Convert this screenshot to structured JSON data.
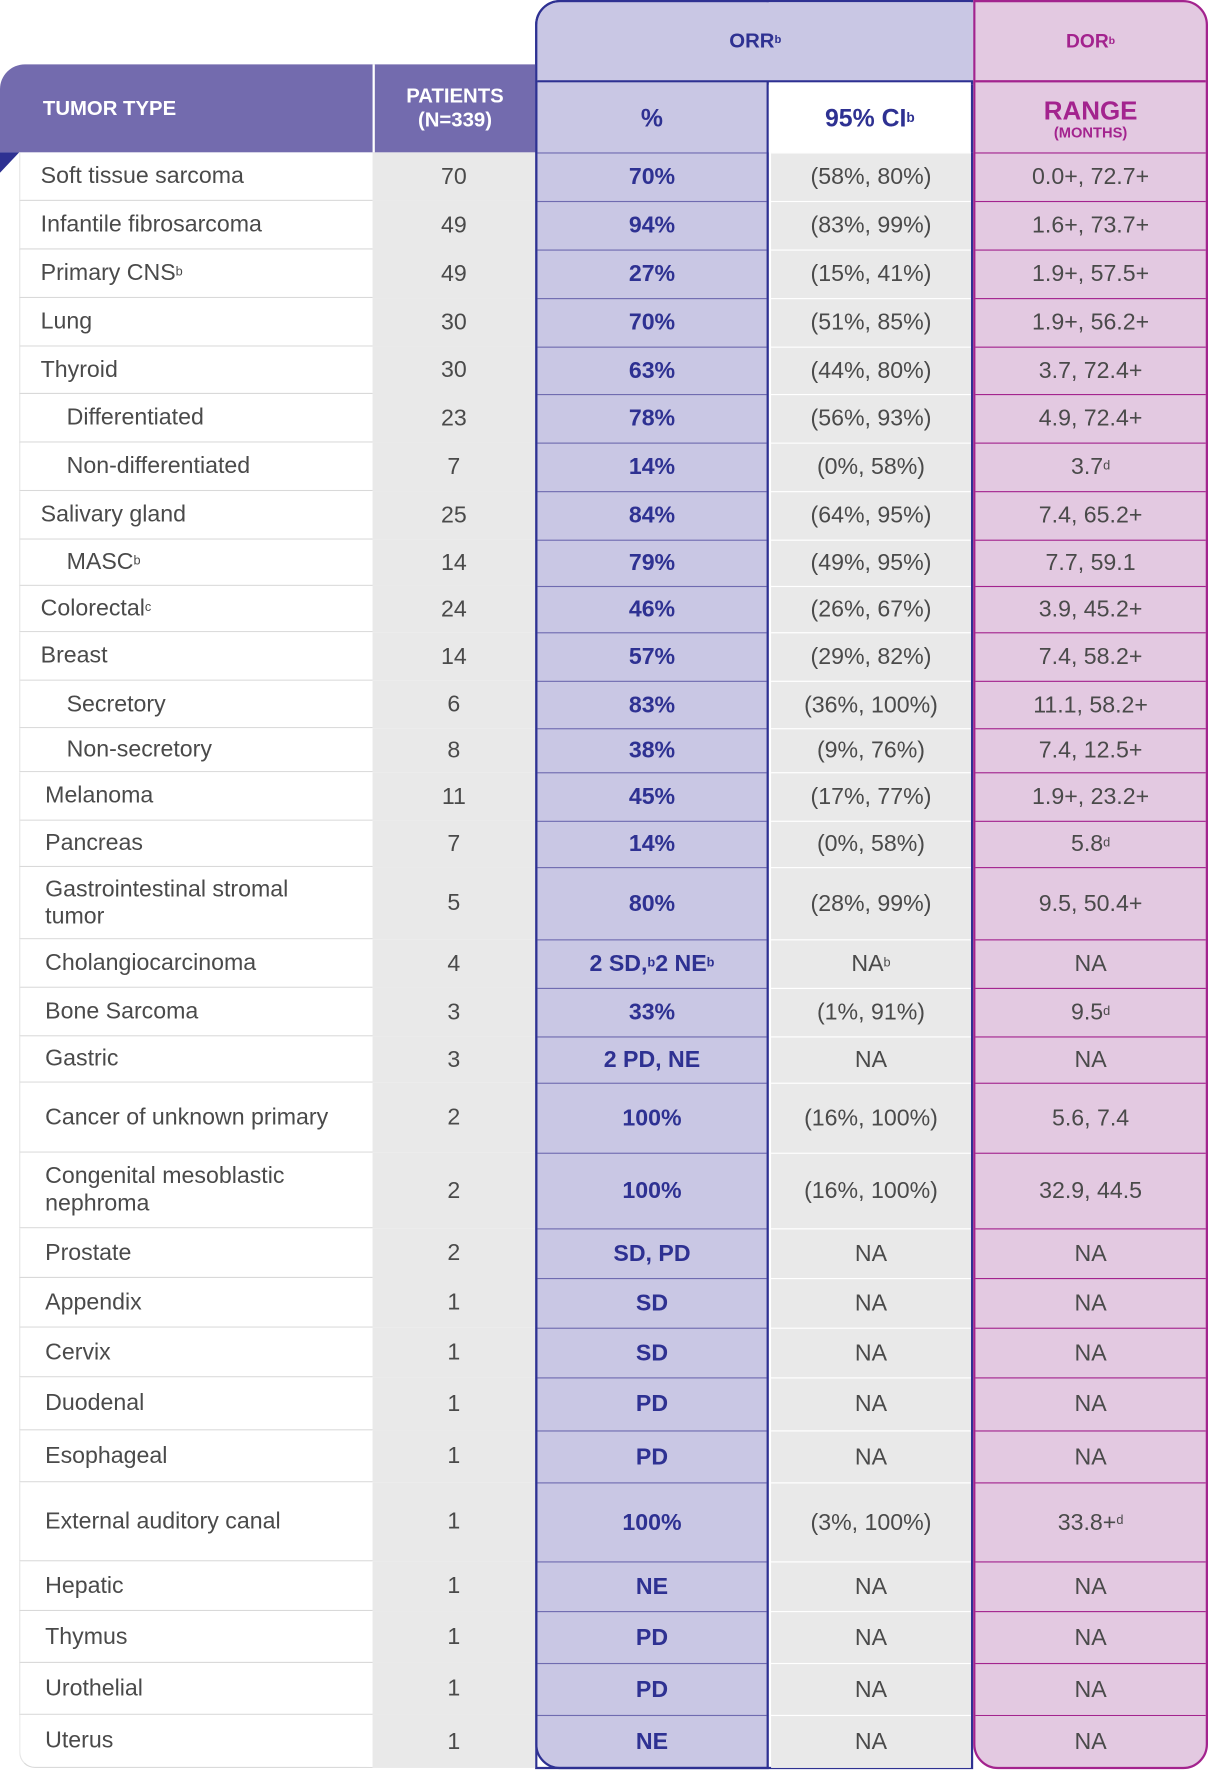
{
  "header": {
    "tumor_type": "TUMOR TYPE",
    "patients_line1": "PATIENTS",
    "patients_line2": "(N=339)",
    "orr": "ORR",
    "orr_sup": "b",
    "dor": "DOR",
    "dor_sup": "b",
    "pct": "%",
    "ci": "95% CI",
    "ci_sup": "b",
    "range": "RANGE",
    "range_unit": "(MONTHS)"
  },
  "colors": {
    "header_purple": "#736bae",
    "orr_fill": "#c9c7e4",
    "orr_navy": "#2e3192",
    "dor_fill": "#e3c9e1",
    "dor_magenta": "#a3238e",
    "gray_fill": "#e9e9e9"
  },
  "rows": [
    {
      "name": "Soft tissue sarcoma",
      "name_sup": "",
      "level": 0,
      "patients": "70",
      "orr": [
        {
          "t": "70%"
        }
      ],
      "ci": [
        {
          "t": "(58%, 80%)"
        }
      ],
      "range": [
        {
          "t": "0.0+, 72.7+"
        }
      ]
    },
    {
      "name": "Infantile fibrosarcoma",
      "name_sup": "",
      "level": 0,
      "patients": "49",
      "orr": [
        {
          "t": "94%"
        }
      ],
      "ci": [
        {
          "t": "(83%, 99%)"
        }
      ],
      "range": [
        {
          "t": "1.6+, 73.7+"
        }
      ]
    },
    {
      "name": "Primary CNS",
      "name_sup": "b",
      "level": 0,
      "patients": "49",
      "orr": [
        {
          "t": "27%"
        }
      ],
      "ci": [
        {
          "t": "(15%, 41%)"
        }
      ],
      "range": [
        {
          "t": "1.9+, 57.5+"
        }
      ]
    },
    {
      "name": "Lung",
      "name_sup": "",
      "level": 0,
      "patients": "30",
      "orr": [
        {
          "t": "70%"
        }
      ],
      "ci": [
        {
          "t": "(51%, 85%)"
        }
      ],
      "range": [
        {
          "t": "1.9+, 56.2+"
        }
      ]
    },
    {
      "name": "Thyroid",
      "name_sup": "",
      "level": 0,
      "patients": "30",
      "orr": [
        {
          "t": "63%"
        }
      ],
      "ci": [
        {
          "t": "(44%, 80%)"
        }
      ],
      "range": [
        {
          "t": "3.7, 72.4+"
        }
      ]
    },
    {
      "name": "Differentiated",
      "name_sup": "",
      "level": 1,
      "patients": "23",
      "orr": [
        {
          "t": "78%"
        }
      ],
      "ci": [
        {
          "t": "(56%, 93%)"
        }
      ],
      "range": [
        {
          "t": "4.9, 72.4+"
        }
      ]
    },
    {
      "name": "Non-differentiated",
      "name_sup": "",
      "level": 1,
      "patients": "7",
      "orr": [
        {
          "t": "14%"
        }
      ],
      "ci": [
        {
          "t": "(0%, 58%)"
        }
      ],
      "range": [
        {
          "t": "3.7",
          "sup": "d"
        }
      ]
    },
    {
      "name": "Salivary gland",
      "name_sup": "",
      "level": 0,
      "patients": "25",
      "orr": [
        {
          "t": "84%"
        }
      ],
      "ci": [
        {
          "t": "(64%, 95%)"
        }
      ],
      "range": [
        {
          "t": "7.4, 65.2+"
        }
      ]
    },
    {
      "name": "MASC",
      "name_sup": "b",
      "level": 1,
      "patients": "14",
      "orr": [
        {
          "t": "79%"
        }
      ],
      "ci": [
        {
          "t": "(49%, 95%)"
        }
      ],
      "range": [
        {
          "t": "7.7, 59.1"
        }
      ]
    },
    {
      "name": "Colorectal",
      "name_sup": "c",
      "level": 0,
      "patients": "24",
      "orr": [
        {
          "t": "46%"
        }
      ],
      "ci": [
        {
          "t": "(26%, 67%)"
        }
      ],
      "range": [
        {
          "t": "3.9, 45.2+"
        }
      ]
    },
    {
      "name": "Breast",
      "name_sup": "",
      "level": 0,
      "patients": "14",
      "orr": [
        {
          "t": "57%"
        }
      ],
      "ci": [
        {
          "t": "(29%, 82%)"
        }
      ],
      "range": [
        {
          "t": "7.4, 58.2+"
        }
      ]
    },
    {
      "name": "Secretory",
      "name_sup": "",
      "level": 1,
      "patients": "6",
      "orr": [
        {
          "t": "83%"
        }
      ],
      "ci": [
        {
          "t": "(36%, 100%)"
        }
      ],
      "range": [
        {
          "t": "11.1, 58.2+"
        }
      ]
    },
    {
      "name": "Non-secretory",
      "name_sup": "",
      "level": 1,
      "patients": "8",
      "orr": [
        {
          "t": "38%"
        }
      ],
      "ci": [
        {
          "t": "(9%, 76%)"
        }
      ],
      "range": [
        {
          "t": "7.4, 12.5+"
        }
      ]
    },
    {
      "name": "Melanoma",
      "name_sup": "",
      "level": 2,
      "patients": "11",
      "orr": [
        {
          "t": "45%"
        }
      ],
      "ci": [
        {
          "t": "(17%, 77%)"
        }
      ],
      "range": [
        {
          "t": "1.9+, 23.2+"
        }
      ]
    },
    {
      "name": "Pancreas",
      "name_sup": "",
      "level": 2,
      "patients": "7",
      "orr": [
        {
          "t": "14%"
        }
      ],
      "ci": [
        {
          "t": "(0%, 58%)"
        }
      ],
      "range": [
        {
          "t": "5.8",
          "sup": "d"
        }
      ]
    },
    {
      "name": "Gastrointestinal stromal tumor",
      "name_sup": "",
      "level": 2,
      "patients": "5",
      "orr": [
        {
          "t": "80%"
        }
      ],
      "ci": [
        {
          "t": "(28%, 99%)"
        }
      ],
      "range": [
        {
          "t": "9.5, 50.4+"
        }
      ]
    },
    {
      "name": "Cholangiocarcinoma",
      "name_sup": "",
      "level": 2,
      "patients": "4",
      "orr": [
        {
          "t": "2 SD,",
          "sup": "b"
        },
        {
          "t": " 2 NE",
          "sup": "b"
        }
      ],
      "ci": [
        {
          "t": "NA",
          "sup": "b"
        }
      ],
      "range": [
        {
          "t": "NA"
        }
      ]
    },
    {
      "name": "Bone Sarcoma",
      "name_sup": "",
      "level": 2,
      "patients": "3",
      "orr": [
        {
          "t": "33%"
        }
      ],
      "ci": [
        {
          "t": "(1%, 91%)"
        }
      ],
      "range": [
        {
          "t": "9.5",
          "sup": "d"
        }
      ]
    },
    {
      "name": "Gastric",
      "name_sup": "",
      "level": 2,
      "patients": "3",
      "orr": [
        {
          "t": "2 PD, NE"
        }
      ],
      "ci": [
        {
          "t": "NA"
        }
      ],
      "range": [
        {
          "t": "NA"
        }
      ]
    },
    {
      "name": "Cancer of unknown primary",
      "name_sup": "",
      "level": 2,
      "patients": "2",
      "orr": [
        {
          "t": "100%"
        }
      ],
      "ci": [
        {
          "t": "(16%, 100%)"
        }
      ],
      "range": [
        {
          "t": "5.6, 7.4"
        }
      ]
    },
    {
      "name": "Congenital mesoblastic nephroma",
      "name_sup": "",
      "level": 2,
      "patients": "2",
      "orr": [
        {
          "t": "100%"
        }
      ],
      "ci": [
        {
          "t": "(16%, 100%)"
        }
      ],
      "range": [
        {
          "t": "32.9, 44.5"
        }
      ]
    },
    {
      "name": "Prostate",
      "name_sup": "",
      "level": 2,
      "patients": "2",
      "orr": [
        {
          "t": "SD, PD"
        }
      ],
      "ci": [
        {
          "t": "NA"
        }
      ],
      "range": [
        {
          "t": "NA"
        }
      ]
    },
    {
      "name": "Appendix",
      "name_sup": "",
      "level": 2,
      "patients": "1",
      "orr": [
        {
          "t": "SD"
        }
      ],
      "ci": [
        {
          "t": "NA"
        }
      ],
      "range": [
        {
          "t": "NA"
        }
      ]
    },
    {
      "name": "Cervix",
      "name_sup": "",
      "level": 2,
      "patients": "1",
      "orr": [
        {
          "t": "SD"
        }
      ],
      "ci": [
        {
          "t": "NA"
        }
      ],
      "range": [
        {
          "t": "NA"
        }
      ]
    },
    {
      "name": "Duodenal",
      "name_sup": "",
      "level": 2,
      "patients": "1",
      "orr": [
        {
          "t": "PD"
        }
      ],
      "ci": [
        {
          "t": "NA"
        }
      ],
      "range": [
        {
          "t": "NA"
        }
      ]
    },
    {
      "name": "Esophageal",
      "name_sup": "",
      "level": 2,
      "patients": "1",
      "orr": [
        {
          "t": "PD"
        }
      ],
      "ci": [
        {
          "t": "NA"
        }
      ],
      "range": [
        {
          "t": "NA"
        }
      ]
    },
    {
      "name": "External auditory canal",
      "name_sup": "",
      "level": 2,
      "patients": "1",
      "orr": [
        {
          "t": "100%"
        }
      ],
      "ci": [
        {
          "t": "(3%, 100%)"
        }
      ],
      "range": [
        {
          "t": "33.8+",
          "sup": "d"
        }
      ]
    },
    {
      "name": "Hepatic",
      "name_sup": "",
      "level": 2,
      "patients": "1",
      "orr": [
        {
          "t": "NE"
        }
      ],
      "ci": [
        {
          "t": "NA"
        }
      ],
      "range": [
        {
          "t": "NA"
        }
      ]
    },
    {
      "name": "Thymus",
      "name_sup": "",
      "level": 2,
      "patients": "1",
      "orr": [
        {
          "t": "PD"
        }
      ],
      "ci": [
        {
          "t": "NA"
        }
      ],
      "range": [
        {
          "t": "NA"
        }
      ]
    },
    {
      "name": "Urothelial",
      "name_sup": "",
      "level": 2,
      "patients": "1",
      "orr": [
        {
          "t": "PD"
        }
      ],
      "ci": [
        {
          "t": "NA"
        }
      ],
      "range": [
        {
          "t": "NA"
        }
      ]
    },
    {
      "name": "Uterus",
      "name_sup": "",
      "level": 2,
      "patients": "1",
      "orr": [
        {
          "t": "NE"
        }
      ],
      "ci": [
        {
          "t": "NA"
        }
      ],
      "range": [
        {
          "t": "NA"
        }
      ]
    }
  ]
}
